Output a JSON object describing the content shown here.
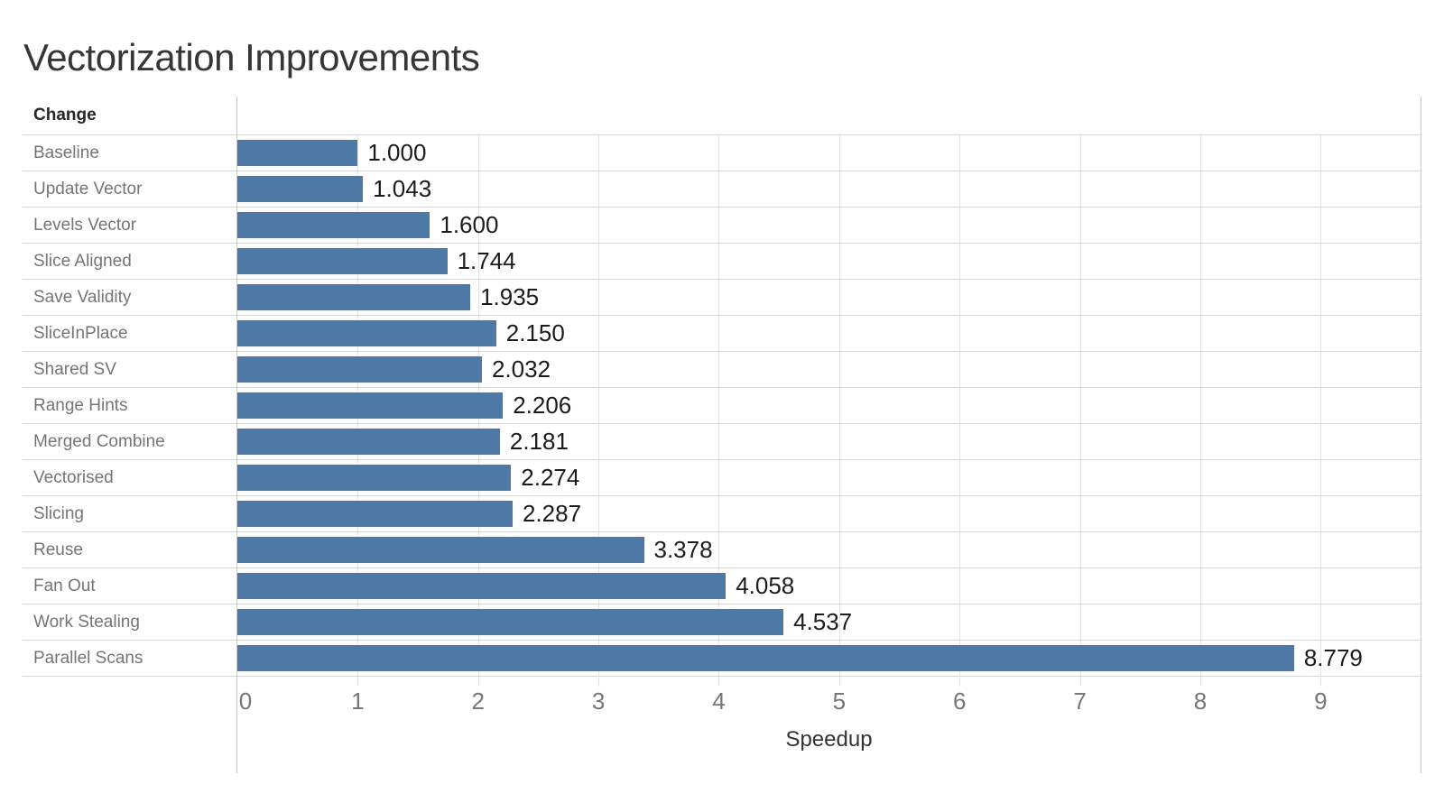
{
  "title": "Vectorization Improvements",
  "chart_data": {
    "type": "bar",
    "orientation": "horizontal",
    "category_header": "Change",
    "categories": [
      "Baseline",
      "Update Vector",
      "Levels Vector",
      "Slice Aligned",
      "Save Validity",
      "SliceInPlace",
      "Shared SV",
      "Range Hints",
      "Merged Combine",
      "Vectorised",
      "Slicing",
      "Reuse",
      "Fan Out",
      "Work Stealing",
      "Parallel Scans"
    ],
    "values": [
      1.0,
      1.043,
      1.6,
      1.744,
      1.935,
      2.15,
      2.032,
      2.206,
      2.181,
      2.274,
      2.287,
      3.378,
      4.058,
      4.537,
      8.779
    ],
    "value_labels": [
      "1.000",
      "1.043",
      "1.600",
      "1.744",
      "1.935",
      "2.150",
      "2.032",
      "2.206",
      "2.181",
      "2.274",
      "2.287",
      "3.378",
      "4.058",
      "4.537",
      "8.779"
    ],
    "xlabel": "Speedup",
    "xlim": [
      0,
      9.83
    ],
    "xticks": [
      0,
      1,
      2,
      3,
      4,
      5,
      6,
      7,
      8,
      9
    ],
    "grid": "vertical",
    "legend": "none",
    "bar_color": "#4e79a7"
  },
  "colors": {
    "bar": "#4e79a7",
    "gridline": "#e4e4e4",
    "row_separator": "#d9d9d9",
    "plot_border": "#c9c9c9",
    "title_text": "#363636",
    "category_text": "#757575",
    "value_text": "#1c1c1c",
    "tick_text": "#767676",
    "axis_title_text": "#333333"
  }
}
